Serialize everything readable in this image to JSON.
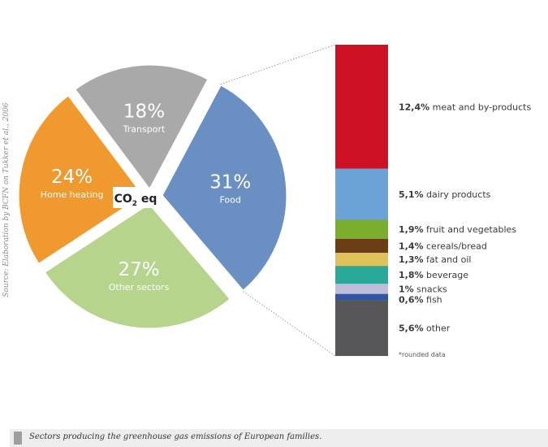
{
  "source_note": "Source: Elaboration by BCFN on Tukker et al., 2006",
  "caption": "Sectors producing the greenhouse gas emissions of European families.",
  "colors": {
    "transport": "#a9a9a9",
    "home_heating": "#f0992f",
    "other_sectors": "#b6d48c",
    "food": "#6a8fc3",
    "meat": "#cc1122",
    "dairy": "#6ba3d6",
    "fruit_veg": "#7aae2c",
    "cereals": "#6b3d14",
    "fat_oil": "#dfc25a",
    "beverage": "#2aa898",
    "snacks": "#c0bcdc",
    "fish": "#3155a0",
    "other": "#575759"
  },
  "chart_data": [
    {
      "type": "pie",
      "center_label": {
        "prefix": "CO",
        "sub": "2",
        "suffix": " eq"
      },
      "slices": [
        {
          "key": "food",
          "label": "Food",
          "pct_text": "31%",
          "value": 31,
          "color_key": "food"
        },
        {
          "key": "other_sectors",
          "label": "Other sectors",
          "pct_text": "27%",
          "value": 27,
          "color_key": "other_sectors"
        },
        {
          "key": "home_heating",
          "label": "Home heating",
          "pct_text": "24%",
          "value": 24,
          "color_key": "home_heating"
        },
        {
          "key": "transport",
          "label": "Transport",
          "pct_text": "18%",
          "value": 18,
          "color_key": "transport"
        }
      ]
    },
    {
      "type": "bar",
      "stacked": true,
      "note": "*rounded data",
      "segments": [
        {
          "key": "meat",
          "pct_text": "12,4%",
          "label": "meat and by-products",
          "value": 12.4,
          "color_key": "meat"
        },
        {
          "key": "dairy",
          "pct_text": "5,1%",
          "label": "dairy products",
          "value": 5.1,
          "color_key": "dairy"
        },
        {
          "key": "fruit_veg",
          "pct_text": "1,9%",
          "label": "fruit and vegetables",
          "value": 1.9,
          "color_key": "fruit_veg"
        },
        {
          "key": "cereals",
          "pct_text": "1,4%",
          "label": "cereals/bread",
          "value": 1.4,
          "color_key": "cereals"
        },
        {
          "key": "fat_oil",
          "pct_text": "1,3%",
          "label": "fat and oil",
          "value": 1.3,
          "color_key": "fat_oil"
        },
        {
          "key": "beverage",
          "pct_text": "1,8%",
          "label": "beverage",
          "value": 1.8,
          "color_key": "beverage"
        },
        {
          "key": "snacks",
          "pct_text": "1%",
          "label": "snacks",
          "value": 1.0,
          "color_key": "snacks"
        },
        {
          "key": "fish",
          "pct_text": "0,6%",
          "label": "fish",
          "value": 0.6,
          "color_key": "fish"
        },
        {
          "key": "other",
          "pct_text": "5,6%",
          "label": "other",
          "value": 5.6,
          "color_key": "other"
        }
      ]
    }
  ]
}
